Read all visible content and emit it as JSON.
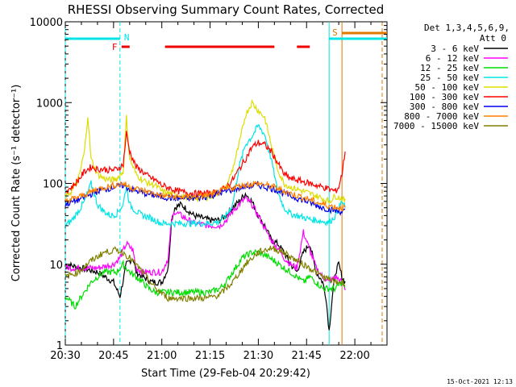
{
  "chart_data": {
    "type": "line",
    "title": "RHESSI Observing Summary Count Rates, Corrected",
    "xlabel": "Start Time (29-Feb-04 20:29:42)",
    "ylabel": "Corrected Count Rate (s⁻¹ detector⁻¹)",
    "yscale": "log",
    "ylim": [
      1,
      10000
    ],
    "xlim_minutes": [
      0,
      100
    ],
    "xtick_labels": [
      "20:30",
      "20:45",
      "21:00",
      "21:15",
      "21:30",
      "21:45",
      "22:00"
    ],
    "xtick_minutes": [
      0,
      15,
      30,
      45,
      60,
      75,
      90
    ],
    "ytick_labels": [
      "1",
      "10",
      "100",
      "1000",
      "10000"
    ],
    "ytick_values": [
      1,
      10,
      100,
      1000,
      10000
    ],
    "legend_header": [
      "Det 1,3,4,5,6,9,",
      "Att 0"
    ],
    "legend_position": "top-right",
    "timestamp": "15-Oct-2021 12:13",
    "flag_labels": {
      "night": "N",
      "flare": "F",
      "saa": "S"
    },
    "flags": {
      "night": [
        [
          0,
          17
        ],
        [
          82,
          100
        ]
      ],
      "flare": [
        [
          17.5,
          20
        ],
        [
          31,
          65
        ],
        [
          72,
          76
        ]
      ],
      "saa": [
        [
          86,
          100
        ]
      ]
    },
    "vlines": [
      {
        "x": 0,
        "color": "#00e5e5",
        "style": "dashed"
      },
      {
        "x": 17,
        "color": "#00e5e5",
        "style": "dashed"
      },
      {
        "x": 82,
        "color": "#00e5e5",
        "style": "solid"
      },
      {
        "x": 86,
        "color": "#e07800",
        "style": "solid"
      },
      {
        "x": 98.5,
        "color": "#e07800",
        "style": "dashed"
      }
    ],
    "series": [
      {
        "name": "3 - 6 keV",
        "color": "#000000",
        "x": [
          0,
          5,
          10,
          15,
          17,
          19,
          21,
          22,
          24,
          27,
          30,
          32,
          33,
          34,
          36,
          40,
          45,
          48,
          50,
          52,
          54,
          56,
          58,
          60,
          62,
          64,
          66,
          68,
          70,
          72,
          74,
          76,
          78,
          80,
          81,
          82,
          83,
          84,
          85,
          86,
          87
        ],
        "y": [
          10,
          9,
          8,
          6,
          4,
          10,
          12,
          8,
          7,
          6,
          6,
          9,
          35,
          50,
          55,
          40,
          35,
          35,
          40,
          50,
          60,
          75,
          60,
          40,
          30,
          20,
          18,
          14,
          10,
          8,
          14,
          18,
          8,
          6,
          4,
          1.5,
          4,
          8,
          10,
          7,
          6
        ]
      },
      {
        "name": "6 - 12 keV",
        "color": "#ff00ff",
        "x": [
          0,
          5,
          10,
          15,
          17,
          19,
          21,
          22,
          24,
          27,
          30,
          32,
          33,
          34,
          36,
          40,
          45,
          48,
          50,
          52,
          54,
          56,
          58,
          60,
          62,
          64,
          66,
          68,
          70,
          72,
          74,
          76,
          78,
          80,
          82,
          84,
          86,
          87
        ],
        "y": [
          9,
          9,
          9,
          10,
          12,
          18,
          15,
          9,
          8,
          8,
          8,
          12,
          35,
          45,
          40,
          32,
          30,
          30,
          35,
          45,
          55,
          65,
          55,
          40,
          28,
          20,
          16,
          12,
          10,
          9,
          25,
          15,
          9,
          7,
          6,
          7,
          6,
          5
        ]
      },
      {
        "name": "12 - 25 keV",
        "color": "#00dd00",
        "x": [
          0,
          3,
          5,
          8,
          10,
          12,
          14,
          16,
          18,
          19,
          20,
          22,
          24,
          26,
          28,
          30,
          35,
          40,
          45,
          48,
          50,
          52,
          55,
          58,
          60,
          62,
          65,
          68,
          70,
          72,
          74,
          76,
          78,
          80,
          82,
          84,
          86,
          87
        ],
        "y": [
          4,
          3,
          4,
          6,
          7,
          8,
          8,
          8,
          10,
          9,
          8,
          7,
          6,
          5,
          4.5,
          4.5,
          4.5,
          4.5,
          4.5,
          5,
          6,
          8,
          12,
          14,
          14,
          13,
          11,
          9,
          8,
          7,
          6,
          7,
          6,
          5,
          5,
          5,
          6,
          5
        ]
      },
      {
        "name": "25 - 50 keV",
        "color": "#00e5e5",
        "x": [
          0,
          2,
          4,
          6,
          8,
          10,
          12,
          14,
          16,
          18,
          19,
          20,
          22,
          24,
          26,
          28,
          30,
          35,
          40,
          45,
          48,
          50,
          52,
          54,
          56,
          58,
          60,
          62,
          64,
          66,
          68,
          70,
          72,
          74,
          76,
          78,
          80,
          82,
          84,
          86,
          87
        ],
        "y": [
          30,
          35,
          45,
          60,
          100,
          55,
          45,
          40,
          42,
          55,
          95,
          55,
          45,
          40,
          38,
          35,
          32,
          32,
          32,
          32,
          34,
          40,
          55,
          160,
          300,
          380,
          520,
          400,
          200,
          80,
          50,
          42,
          40,
          38,
          36,
          35,
          34,
          33,
          40,
          60,
          50
        ]
      },
      {
        "name": "50 - 100 keV",
        "color": "#dddd00",
        "x": [
          0,
          2,
          4,
          6,
          7,
          8,
          10,
          12,
          14,
          16,
          18,
          19,
          20,
          22,
          24,
          26,
          28,
          30,
          35,
          40,
          45,
          48,
          50,
          52,
          54,
          56,
          58,
          60,
          62,
          64,
          66,
          68,
          70,
          72,
          74,
          76,
          78,
          80,
          82,
          84,
          86,
          87
        ],
        "y": [
          70,
          80,
          110,
          250,
          700,
          200,
          130,
          115,
          110,
          115,
          140,
          650,
          200,
          130,
          110,
          100,
          95,
          80,
          70,
          65,
          68,
          80,
          90,
          150,
          300,
          700,
          1000,
          800,
          650,
          300,
          150,
          100,
          90,
          85,
          80,
          75,
          70,
          65,
          60,
          70,
          65,
          60
        ]
      },
      {
        "name": "100 - 300 keV",
        "color": "#ff0000",
        "x": [
          0,
          2,
          4,
          6,
          8,
          10,
          12,
          14,
          16,
          18,
          19,
          20,
          22,
          24,
          26,
          28,
          30,
          35,
          40,
          45,
          48,
          50,
          52,
          54,
          56,
          58,
          60,
          62,
          64,
          66,
          68,
          70,
          72,
          74,
          76,
          78,
          80,
          82,
          84,
          85,
          86,
          87
        ],
        "y": [
          80,
          90,
          110,
          140,
          160,
          150,
          150,
          145,
          150,
          170,
          420,
          250,
          160,
          140,
          120,
          110,
          95,
          80,
          75,
          75,
          80,
          90,
          110,
          150,
          200,
          280,
          320,
          300,
          250,
          180,
          130,
          115,
          110,
          105,
          100,
          95,
          90,
          85,
          80,
          90,
          130,
          250
        ]
      },
      {
        "name": "300 - 800 keV",
        "color": "#0000ee",
        "x": [
          0,
          5,
          10,
          15,
          18,
          20,
          25,
          30,
          35,
          40,
          45,
          50,
          55,
          60,
          65,
          70,
          75,
          80,
          85,
          87
        ],
        "y": [
          55,
          65,
          80,
          90,
          95,
          85,
          75,
          68,
          65,
          65,
          70,
          80,
          90,
          95,
          85,
          70,
          60,
          50,
          45,
          45
        ]
      },
      {
        "name": "800 - 7000 keV",
        "color": "#ff8000",
        "x": [
          0,
          5,
          10,
          15,
          18,
          20,
          25,
          30,
          35,
          40,
          45,
          50,
          55,
          60,
          65,
          70,
          75,
          80,
          85,
          87
        ],
        "y": [
          60,
          70,
          85,
          95,
          100,
          90,
          80,
          70,
          68,
          68,
          72,
          85,
          95,
          100,
          90,
          75,
          65,
          55,
          50,
          50
        ]
      },
      {
        "name": "7000 - 15000 keV",
        "color": "#808000",
        "x": [
          0,
          4,
          8,
          12,
          16,
          18,
          20,
          24,
          28,
          32,
          36,
          40,
          44,
          48,
          52,
          56,
          60,
          64,
          68,
          72,
          76,
          80,
          84,
          86,
          87
        ],
        "y": [
          7,
          8,
          11,
          14,
          15,
          14,
          12,
          8,
          5,
          3.8,
          3.8,
          3.8,
          3.8,
          4.2,
          6,
          10,
          14,
          16,
          14,
          11,
          9,
          7,
          6,
          6,
          6
        ]
      }
    ]
  }
}
